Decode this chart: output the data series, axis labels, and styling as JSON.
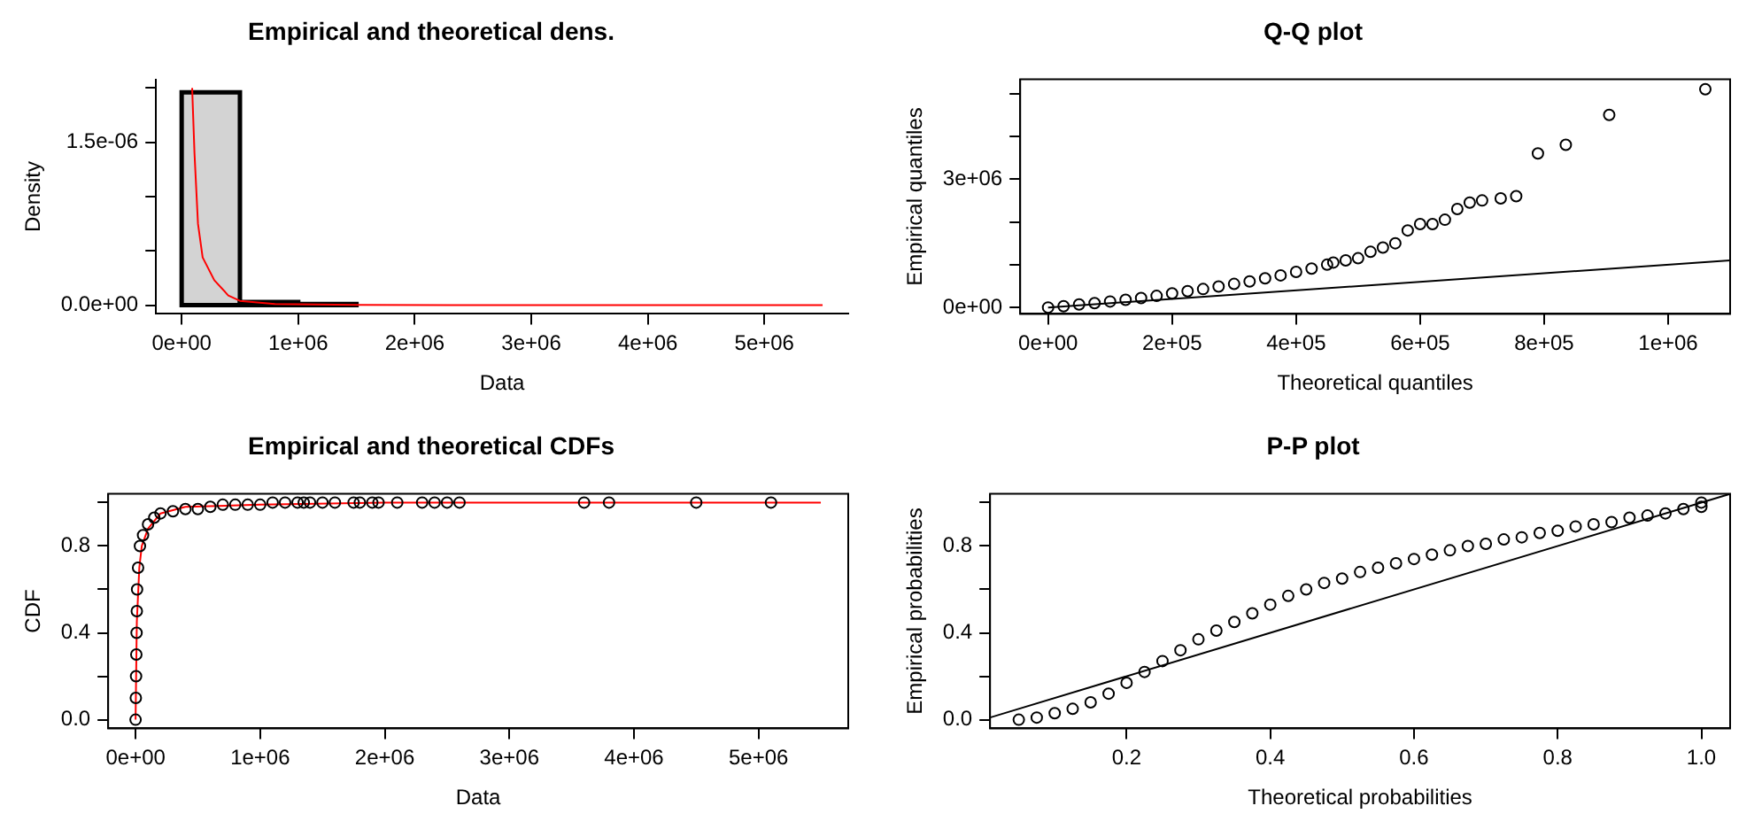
{
  "chart_data": [
    {
      "type": "histogram",
      "title": "Empirical and theoretical dens.",
      "xlabel": "Data",
      "ylabel": "Density",
      "xlim": [
        -220000,
        5720000
      ],
      "ylim": [
        -8e-08,
        2.08e-06
      ],
      "xticks": [
        {
          "value": 0,
          "label": "0e+00"
        },
        {
          "value": 1000000,
          "label": "1e+06"
        },
        {
          "value": 2000000,
          "label": "2e+06"
        },
        {
          "value": 3000000,
          "label": "3e+06"
        },
        {
          "value": 4000000,
          "label": "4e+06"
        },
        {
          "value": 5000000,
          "label": "5e+06"
        }
      ],
      "yticks": [
        {
          "value": 0,
          "label": "0.0e+00"
        },
        {
          "value": 5e-07,
          "label": null
        },
        {
          "value": 1e-06,
          "label": null
        },
        {
          "value": 1.5e-06,
          "label": "1.5e-06"
        },
        {
          "value": 2e-06,
          "label": null
        }
      ],
      "series": [
        {
          "type": "histogram",
          "color": "#d3d3d3",
          "bins": [
            0,
            500000,
            1000000,
            1500000
          ],
          "values": [
            1.96e-06,
            3e-08,
            1e-08
          ]
        },
        {
          "type": "line",
          "color": "#ff0000",
          "x": [
            90000,
            110000,
            140000,
            180000,
            280000,
            400000,
            500000,
            800000,
            1500000,
            5500000
          ],
          "values": [
            2e-06,
            1.4e-06,
            7.5e-07,
            4.4e-07,
            2.3e-07,
            9e-08,
            4e-08,
            1e-08,
            2e-09,
            0
          ]
        }
      ]
    },
    {
      "type": "scatter",
      "title": "Q-Q plot",
      "xlabel": "Theoretical quantiles",
      "ylabel": "Empirical quantiles",
      "xlim": [
        -45000,
        1100000
      ],
      "ylim": [
        -150000,
        5330000
      ],
      "xticks": [
        {
          "value": 0,
          "label": "0e+00"
        },
        {
          "value": 200000,
          "label": "2e+05"
        },
        {
          "value": 400000,
          "label": "4e+05"
        },
        {
          "value": 600000,
          "label": "6e+05"
        },
        {
          "value": 800000,
          "label": "8e+05"
        },
        {
          "value": 1000000,
          "label": "1e+06"
        }
      ],
      "yticks": [
        {
          "value": 0,
          "label": "0e+00"
        },
        {
          "value": 1000000,
          "label": null
        },
        {
          "value": 2000000,
          "label": null
        },
        {
          "value": 3000000,
          "label": "3e+06"
        },
        {
          "value": 4000000,
          "label": null
        },
        {
          "value": 5000000,
          "label": null
        }
      ],
      "series": [
        {
          "type": "scatter",
          "marker": "circle",
          "color": "#000000",
          "x": [
            0,
            25000,
            50000,
            75000,
            100000,
            125000,
            150000,
            175000,
            200000,
            225000,
            250000,
            275000,
            300000,
            325000,
            350000,
            375000,
            400000,
            425000,
            450000,
            460000,
            480000,
            500000,
            520000,
            540000,
            560000,
            580000,
            600000,
            620000,
            640000,
            660000,
            680000,
            700000,
            730000,
            755000,
            790000,
            835000,
            905000,
            1060000
          ],
          "values": [
            0,
            30000,
            70000,
            100000,
            140000,
            180000,
            220000,
            270000,
            330000,
            380000,
            430000,
            490000,
            550000,
            610000,
            680000,
            750000,
            830000,
            910000,
            1000000,
            1050000,
            1100000,
            1150000,
            1300000,
            1400000,
            1500000,
            1800000,
            1950000,
            1950000,
            2050000,
            2300000,
            2450000,
            2500000,
            2550000,
            2600000,
            3600000,
            3800000,
            4500000,
            5100000
          ]
        },
        {
          "type": "line",
          "color": "#000000",
          "x": [
            0,
            1100000
          ],
          "values": [
            0,
            1100000
          ]
        }
      ]
    },
    {
      "type": "scatter",
      "title": "Empirical and theoretical CDFs",
      "xlabel": "Data",
      "ylabel": "CDF",
      "xlim": [
        -220000,
        5720000
      ],
      "ylim": [
        -0.04,
        1.04
      ],
      "xticks": [
        {
          "value": 0,
          "label": "0e+00"
        },
        {
          "value": 1000000,
          "label": "1e+06"
        },
        {
          "value": 2000000,
          "label": "2e+06"
        },
        {
          "value": 3000000,
          "label": "3e+06"
        },
        {
          "value": 4000000,
          "label": "4e+06"
        },
        {
          "value": 5000000,
          "label": "5e+06"
        }
      ],
      "yticks": [
        {
          "value": 0,
          "label": "0.0"
        },
        {
          "value": 0.2,
          "label": null
        },
        {
          "value": 0.4,
          "label": "0.4"
        },
        {
          "value": 0.6,
          "label": null
        },
        {
          "value": 0.8,
          "label": "0.8"
        },
        {
          "value": 1,
          "label": null
        }
      ],
      "series": [
        {
          "type": "scatter",
          "marker": "circle",
          "color": "#000000",
          "x": [
            0,
            2000,
            4000,
            6000,
            8000,
            10000,
            12000,
            20000,
            35000,
            60000,
            100000,
            150000,
            200000,
            300000,
            400000,
            500000,
            600000,
            700000,
            800000,
            900000,
            1000000,
            1100000,
            1200000,
            1300000,
            1350000,
            1400000,
            1500000,
            1600000,
            1750000,
            1800000,
            1900000,
            1950000,
            2100000,
            2300000,
            2400000,
            2500000,
            2600000,
            3600000,
            3800000,
            4500000,
            5100000
          ],
          "values": [
            0,
            0.1,
            0.2,
            0.3,
            0.4,
            0.5,
            0.6,
            0.7,
            0.8,
            0.85,
            0.9,
            0.93,
            0.95,
            0.96,
            0.97,
            0.97,
            0.98,
            0.99,
            0.99,
            0.99,
            0.99,
            1,
            1,
            1,
            1,
            1,
            1,
            1,
            1,
            1,
            1,
            1,
            1,
            1,
            1,
            1,
            1,
            1,
            1,
            1,
            1
          ]
        },
        {
          "type": "line",
          "color": "#ff0000",
          "x": [
            0,
            10000,
            30000,
            50000,
            100000,
            200000,
            400000,
            1000000,
            2000000,
            5500000
          ],
          "values": [
            0,
            0.45,
            0.7,
            0.8,
            0.88,
            0.95,
            0.98,
            0.99,
            1,
            1
          ]
        }
      ]
    },
    {
      "type": "scatter",
      "title": "P-P plot",
      "xlabel": "Theoretical probabilities",
      "ylabel": "Empirical probabilities",
      "xlim": [
        0.01,
        1.04
      ],
      "ylim": [
        -0.04,
        1.04
      ],
      "xticks": [
        0.2,
        0.4,
        0.6,
        0.8,
        {
          "value": 1,
          "label": "1.0"
        }
      ],
      "yticks": [
        {
          "value": 0,
          "label": "0.0"
        },
        {
          "value": 0.2,
          "label": null
        },
        {
          "value": 0.4,
          "label": "0.4"
        },
        {
          "value": 0.6,
          "label": null
        },
        {
          "value": 0.8,
          "label": "0.8"
        },
        {
          "value": 1,
          "label": null
        }
      ],
      "series": [
        {
          "type": "scatter",
          "marker": "circle",
          "color": "#000000",
          "x": [
            0.05,
            0.075,
            0.1,
            0.125,
            0.15,
            0.175,
            0.2,
            0.225,
            0.25,
            0.275,
            0.3,
            0.325,
            0.35,
            0.375,
            0.4,
            0.425,
            0.45,
            0.475,
            0.5,
            0.525,
            0.55,
            0.575,
            0.6,
            0.625,
            0.65,
            0.675,
            0.7,
            0.725,
            0.75,
            0.775,
            0.8,
            0.825,
            0.85,
            0.875,
            0.9,
            0.925,
            0.95,
            0.975,
            1,
            1
          ],
          "values": [
            0,
            0.01,
            0.03,
            0.05,
            0.08,
            0.12,
            0.17,
            0.22,
            0.27,
            0.32,
            0.37,
            0.41,
            0.45,
            0.49,
            0.53,
            0.57,
            0.6,
            0.63,
            0.65,
            0.68,
            0.7,
            0.72,
            0.74,
            0.76,
            0.78,
            0.8,
            0.81,
            0.83,
            0.84,
            0.86,
            0.87,
            0.89,
            0.9,
            0.91,
            0.93,
            0.94,
            0.95,
            0.97,
            0.98,
            1
          ]
        },
        {
          "type": "line",
          "color": "#000000",
          "x": [
            0.01,
            1.04
          ],
          "values": [
            0.01,
            1.04
          ]
        }
      ]
    }
  ]
}
